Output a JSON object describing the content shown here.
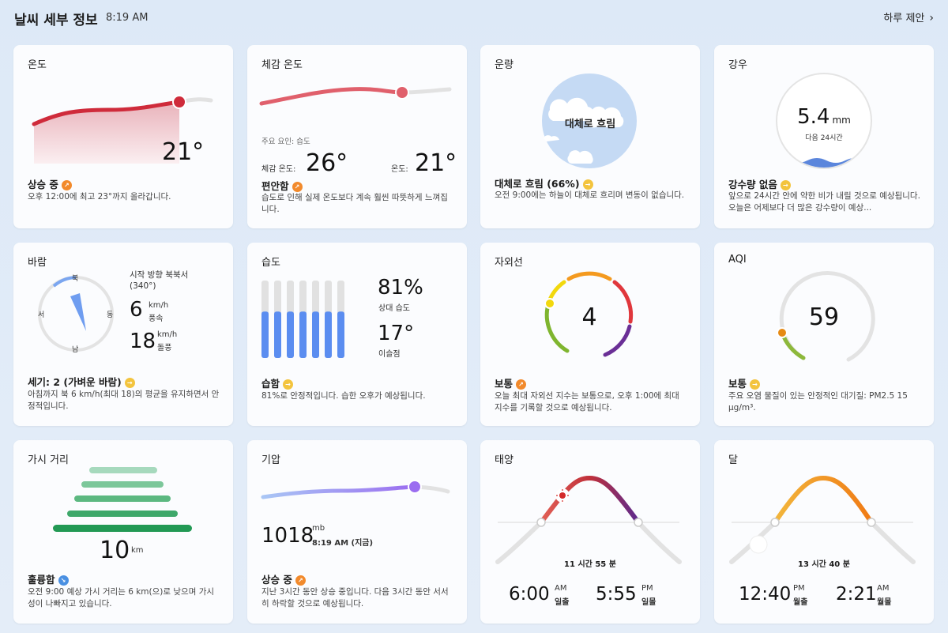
{
  "header": {
    "title": "날씨 세부 정보",
    "time": "8:19 AM",
    "suggest": "하루 제안"
  },
  "temp": {
    "title": "온도",
    "value": "21°",
    "status": "상승 중",
    "desc": "오후 12:00에 최고 23°까지 올라갑니다.",
    "status_color": "#f28a2c"
  },
  "feels": {
    "title": "체감 온도",
    "factor": "주요 요인: 습도",
    "feels_label": "체감 온도:",
    "feels_value": "26°",
    "temp_label": "온도:",
    "temp_value": "21°",
    "status": "편안함",
    "desc": "습도로 인해 실제 온도보다 계속 훨씬 따뜻하게 느껴집니다."
  },
  "cloud": {
    "title": "운량",
    "center": "대체로 흐림",
    "status": "대체로 흐림 (66%)",
    "desc": "오전 9:00에는 하늘이 대체로 흐리며 변동이 없습니다."
  },
  "rain": {
    "title": "강우",
    "value": "5.4",
    "unit": "mm",
    "sub": "다음 24시간",
    "status": "강수량 없음",
    "desc": "앞으로 24시간 안에 약한 비가 내릴 것으로 예상됩니다. 오늘은 어제보다 더 많은 강수량이 예상..."
  },
  "wind": {
    "title": "바람",
    "dir_text": "시작 방향 북북서",
    "deg": "(340°)",
    "speed": "6",
    "speed_unit": "km/h",
    "speed_label": "풍속",
    "gust": "18",
    "gust_unit": "km/h",
    "gust_label": "돌풍",
    "n": "북",
    "s": "남",
    "e": "동",
    "w": "서",
    "status": "세기: 2 (가벼운 바람)",
    "desc": "아침까지 북 6 km/h(최대 18)의 평균을 유지하면서 안정적입니다."
  },
  "humidity": {
    "title": "습도",
    "value": "81%",
    "value_label": "상대 습도",
    "dew": "17°",
    "dew_label": "이슬점",
    "level": 0.6,
    "status": "습함",
    "desc": "81%로 안정적입니다. 습한 오후가 예상됩니다."
  },
  "uv": {
    "title": "자외선",
    "value": "4",
    "status": "보통",
    "desc": "오늘 최대 자외선 지수는 보통으로, 오후 1:00에 최대 지수를 기록할 것으로 예상됩니다."
  },
  "aqi": {
    "title": "AQI",
    "value": "59",
    "status": "보통",
    "desc": "주요 오염 물질이 있는 안정적인 대기질: PM2.5 15 µg/m³."
  },
  "vis": {
    "title": "가시 거리",
    "value": "10",
    "unit": "km",
    "status": "훌륭함",
    "desc": "오전 9:00 예상 가시 거리는 6 km(으)로 낮으며 가시성이 나빠지고 있습니다."
  },
  "pressure": {
    "title": "기압",
    "value": "1018",
    "unit": "mb",
    "time": "8:19 AM (지금)",
    "status": "상승 중",
    "desc": "지난 3시간 동안 상승 중입니다. 다음 3시간 동안 서서히 하락할 것으로 예상됩니다."
  },
  "sun": {
    "title": "태양",
    "duration": "11 시간 55 분",
    "rise": "6:00",
    "rise_ampm": "AM",
    "rise_label": "일출",
    "set": "5:55",
    "set_ampm": "PM",
    "set_label": "일몰"
  },
  "moon": {
    "title": "달",
    "duration": "13 시간 40 분",
    "rise": "12:40",
    "rise_ampm": "PM",
    "rise_label": "월출",
    "set": "2:21",
    "set_ampm": "AM",
    "set_label": "월몰"
  }
}
